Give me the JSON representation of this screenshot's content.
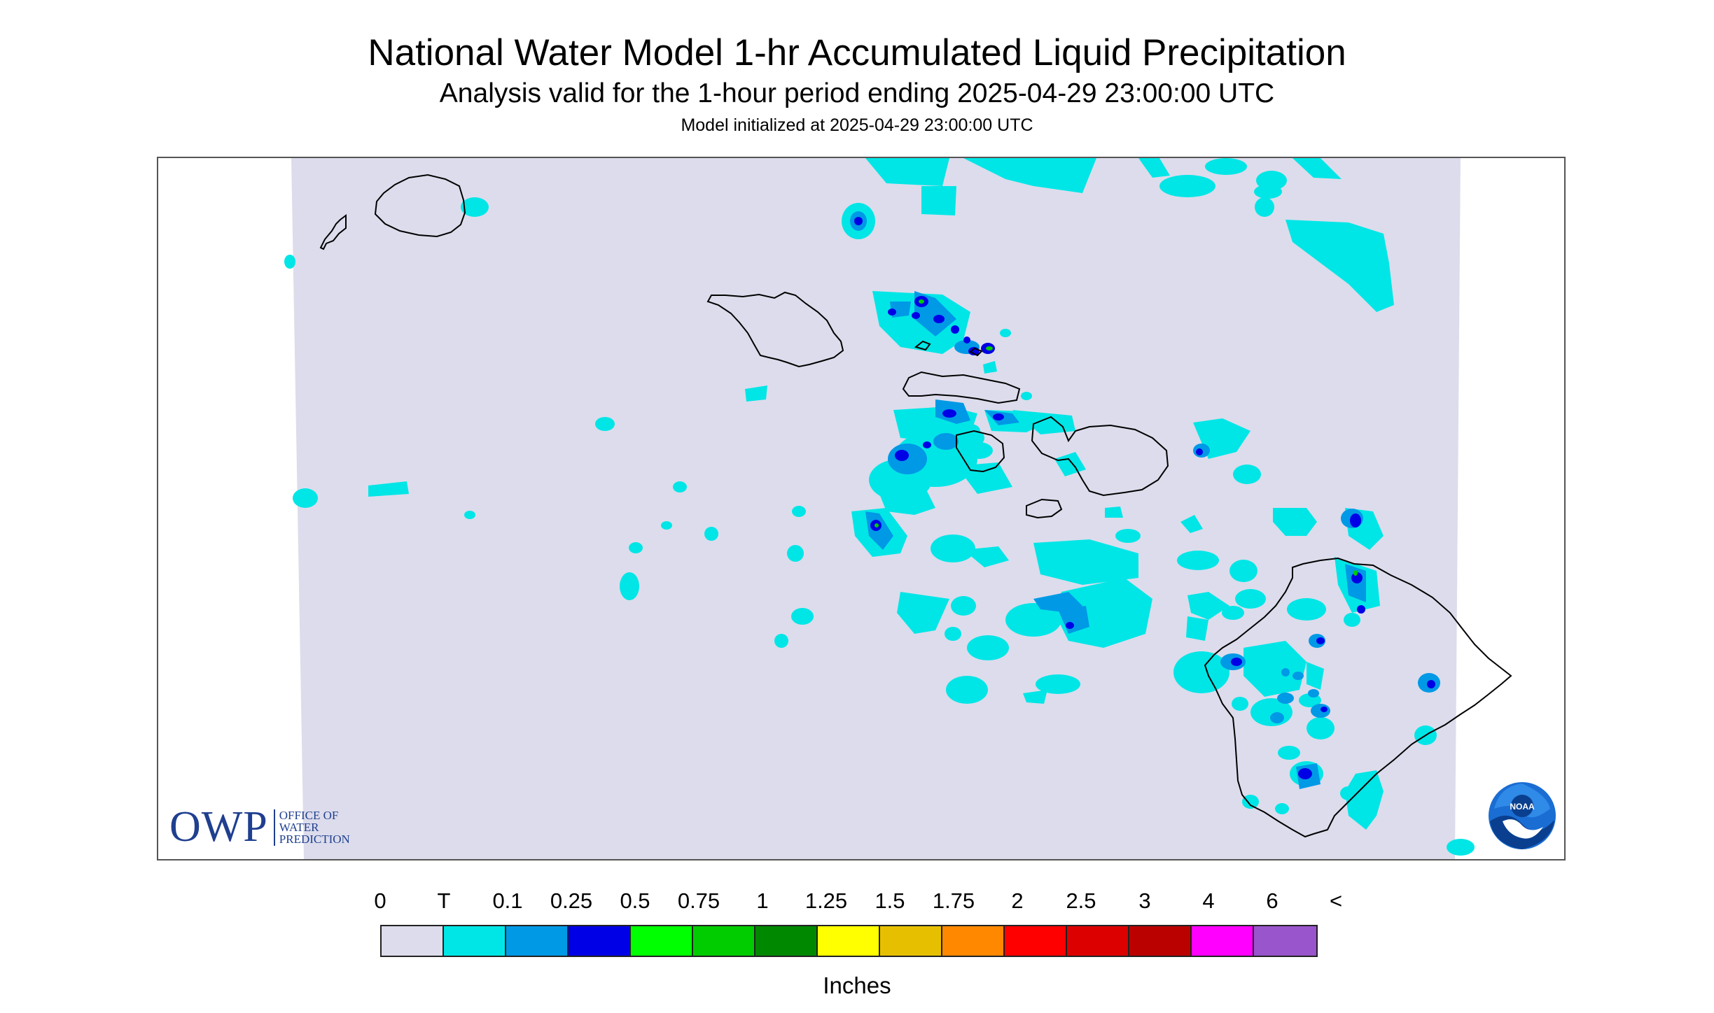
{
  "header": {
    "title": "National Water Model 1-hr Accumulated Liquid Precipitation",
    "subtitle": "Analysis valid for the 1-hour period ending 2025-04-29 23:00:00 UTC",
    "init": "Model initialized at 2025-04-29 23:00:00 UTC"
  },
  "map": {
    "owp_logo": {
      "letters": "OWP",
      "line1": "OFFICE OF",
      "line2": "WATER",
      "line3": "PREDICTION"
    },
    "noaa_logo": {
      "text": "NOAA"
    },
    "colors": {
      "background": "#dcdcec",
      "trace": "#00e6e6",
      "light": "#0099e6",
      "moderate": "#0000e6",
      "heavy": "#00cc00",
      "coast": "#000000"
    },
    "islands": [
      "Niihau",
      "Kauai",
      "Oahu",
      "Molokai",
      "Lanai",
      "Maui",
      "Kahoolawe",
      "Hawaii"
    ]
  },
  "legend": {
    "labels": [
      "0",
      "T",
      "0.1",
      "0.25",
      "0.5",
      "0.75",
      "1",
      "1.25",
      "1.5",
      "1.75",
      "2",
      "2.5",
      "3",
      "4",
      "6",
      "<"
    ],
    "colors": [
      "#dcdcec",
      "#00e6e6",
      "#0099e6",
      "#0000e6",
      "#00ff00",
      "#00cc00",
      "#008800",
      "#ffff00",
      "#e6c000",
      "#ff8800",
      "#ff0000",
      "#dd0000",
      "#bb0000",
      "#ff00ff",
      "#9955cc"
    ],
    "units": "Inches"
  }
}
